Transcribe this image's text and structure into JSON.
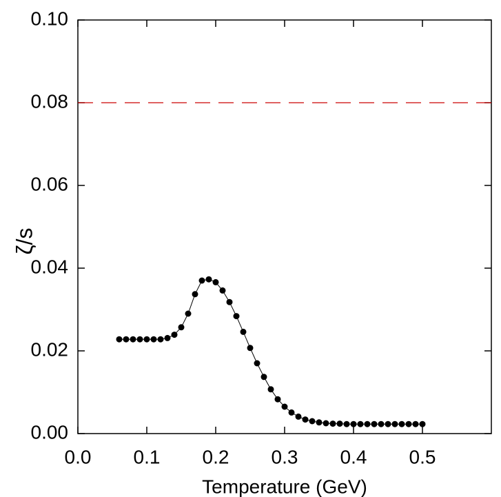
{
  "chart_data": {
    "type": "line",
    "x_label": "Temperature (GeV)",
    "y_label": "ζ/s",
    "x": [
      0.06,
      0.07,
      0.08,
      0.09,
      0.1,
      0.11,
      0.12,
      0.13,
      0.14,
      0.15,
      0.16,
      0.17,
      0.18,
      0.19,
      0.2,
      0.21,
      0.22,
      0.23,
      0.24,
      0.25,
      0.26,
      0.27,
      0.28,
      0.29,
      0.3,
      0.31,
      0.32,
      0.33,
      0.34,
      0.35,
      0.36,
      0.37,
      0.38,
      0.39,
      0.4,
      0.41,
      0.42,
      0.43,
      0.44,
      0.45,
      0.46,
      0.47,
      0.48,
      0.49,
      0.5
    ],
    "series": [
      {
        "color": "#000000",
        "values": [
          0.0228,
          0.0228,
          0.0228,
          0.0228,
          0.0228,
          0.0228,
          0.0228,
          0.0231,
          0.0239,
          0.0257,
          0.029,
          0.0337,
          0.037,
          0.0373,
          0.0366,
          0.0346,
          0.0318,
          0.0284,
          0.0246,
          0.0207,
          0.017,
          0.0137,
          0.0107,
          0.0083,
          0.0065,
          0.0051,
          0.0041,
          0.0034,
          0.003,
          0.0027,
          0.0025,
          0.0024,
          0.0024,
          0.0023,
          0.0023,
          0.0023,
          0.0023,
          0.0023,
          0.0023,
          0.0023,
          0.0023,
          0.0023,
          0.0023,
          0.0023,
          0.0023
        ]
      }
    ],
    "reference_line": {
      "value": 0.08,
      "color": "#cc0000",
      "dashed": true
    },
    "xlim": [
      0,
      0.6
    ],
    "ylim": [
      0,
      0.1
    ],
    "xticks": [
      {
        "value": 0,
        "label": "0.0"
      },
      0.1,
      0.2,
      0.3,
      0.4,
      0.5
    ],
    "yticks": [
      {
        "value": 0,
        "label": "0.00"
      },
      0.02,
      0.04,
      0.06,
      0.08,
      {
        "value": 0.1,
        "label": "0.10"
      }
    ]
  }
}
